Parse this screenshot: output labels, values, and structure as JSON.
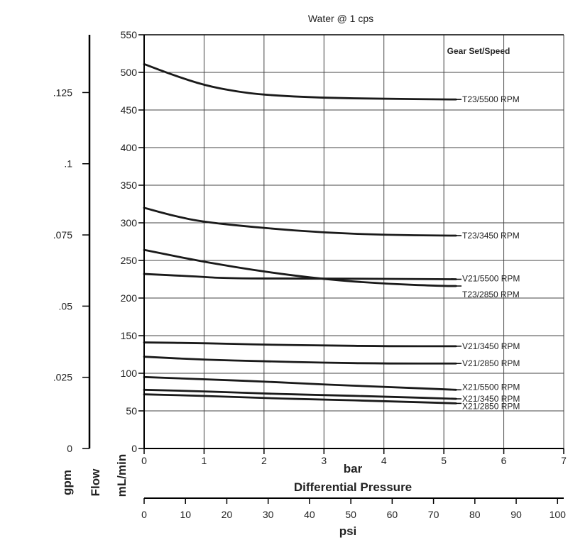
{
  "chart_data": {
    "type": "line",
    "title": "Water @ 1 cps",
    "legend_title": "Gear Set/Speed",
    "grid": true,
    "x_axis": {
      "primary": {
        "label": "bar",
        "ticks": [
          "0",
          "1",
          "2",
          "3",
          "4",
          "5",
          "6",
          "7"
        ],
        "range": [
          0,
          7
        ]
      },
      "secondary": {
        "label": "Differential Pressure",
        "unit_label": "psi",
        "ticks": [
          "0",
          "10",
          "20",
          "30",
          "40",
          "50",
          "60",
          "70",
          "80",
          "90",
          "100"
        ],
        "range": [
          0,
          101.5
        ]
      }
    },
    "y_axis": {
      "primary": {
        "label": "mL/min",
        "ticks": [
          "0",
          "50",
          "100",
          "150",
          "200",
          "250",
          "300",
          "350",
          "400",
          "450",
          "500",
          "550"
        ],
        "range": [
          0,
          550
        ]
      },
      "secondary": {
        "label": "gpm",
        "ticks": [
          "0",
          ".025",
          ".05",
          ".075",
          ".1",
          ".125"
        ],
        "values": [
          0,
          0.025,
          0.05,
          0.075,
          0.1,
          0.125
        ]
      },
      "side_label": "Flow"
    },
    "series": [
      {
        "name": "T23/5500 RPM",
        "points": [
          [
            0,
            511
          ],
          [
            0.5,
            496
          ],
          [
            1,
            483
          ],
          [
            1.5,
            475
          ],
          [
            2,
            470
          ],
          [
            3,
            466
          ],
          [
            4,
            465
          ],
          [
            5,
            464
          ],
          [
            5.2,
            464
          ]
        ]
      },
      {
        "name": "T23/3450 RPM",
        "points": [
          [
            0,
            320
          ],
          [
            0.5,
            309
          ],
          [
            1,
            301
          ],
          [
            2,
            293
          ],
          [
            3,
            287
          ],
          [
            4,
            284
          ],
          [
            5,
            283
          ],
          [
            5.2,
            283
          ]
        ]
      },
      {
        "name": "V21/5500 RPM",
        "points": [
          [
            0,
            232
          ],
          [
            0.8,
            229
          ],
          [
            1.4,
            226
          ],
          [
            3,
            226
          ],
          [
            5.2,
            225
          ]
        ]
      },
      {
        "name": "T23/2850 RPM",
        "points": [
          [
            0,
            264
          ],
          [
            1,
            248
          ],
          [
            2,
            235
          ],
          [
            3,
            225
          ],
          [
            4,
            219
          ],
          [
            5,
            216
          ],
          [
            5.2,
            216
          ]
        ]
      },
      {
        "name": "V21/3450 RPM",
        "points": [
          [
            0,
            141
          ],
          [
            1,
            140
          ],
          [
            2,
            138
          ],
          [
            3,
            137
          ],
          [
            4,
            136
          ],
          [
            5.2,
            136
          ]
        ]
      },
      {
        "name": "V21/2850 RPM",
        "points": [
          [
            0,
            122
          ],
          [
            1,
            118
          ],
          [
            2,
            116
          ],
          [
            3,
            114
          ],
          [
            4,
            113
          ],
          [
            5.2,
            113
          ]
        ]
      },
      {
        "name": "X21/5500 RPM",
        "points": [
          [
            0,
            95
          ],
          [
            1,
            92
          ],
          [
            2,
            89
          ],
          [
            3,
            85
          ],
          [
            4,
            82
          ],
          [
            5.2,
            78
          ]
        ]
      },
      {
        "name": "X21/3450 RPM",
        "points": [
          [
            0,
            78
          ],
          [
            1,
            76
          ],
          [
            2,
            73
          ],
          [
            3,
            71
          ],
          [
            4,
            69
          ],
          [
            5.2,
            66
          ]
        ]
      },
      {
        "name": "X21/2850 RPM",
        "points": [
          [
            0,
            72
          ],
          [
            1,
            70
          ],
          [
            2,
            67
          ],
          [
            3,
            65
          ],
          [
            4,
            63
          ],
          [
            5.2,
            60
          ]
        ]
      }
    ],
    "colors": {
      "line": "#1a1a1a",
      "grid": "#444444",
      "background": "#ffffff"
    }
  }
}
